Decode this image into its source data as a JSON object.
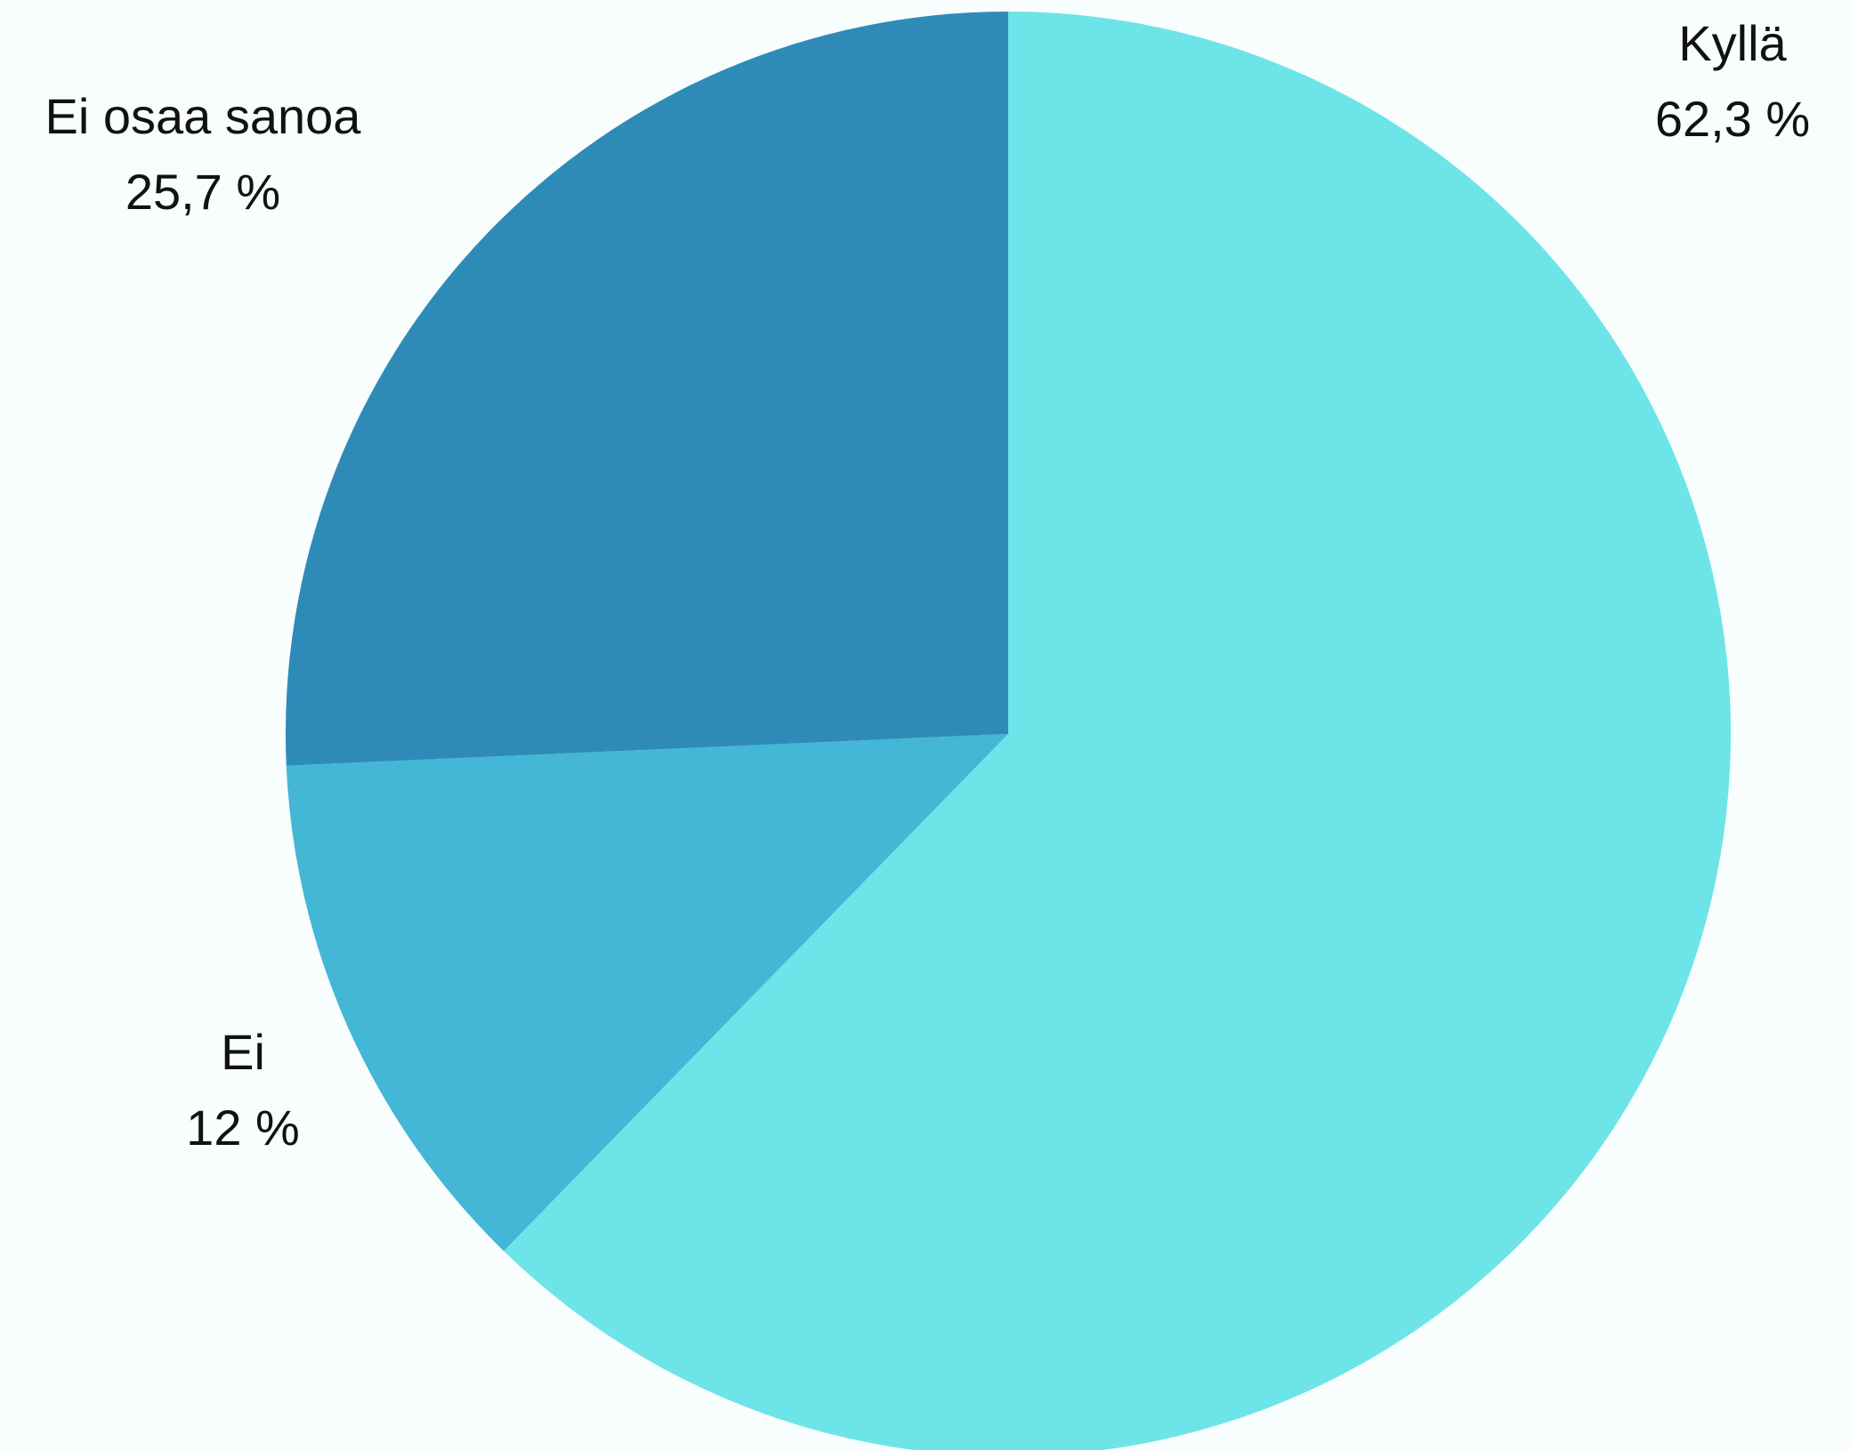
{
  "chart_data": {
    "type": "pie",
    "title": "",
    "slices": [
      {
        "label": "Kyllä",
        "value": 62.3,
        "value_text": "62,3 %",
        "color": "#6de4e8"
      },
      {
        "label": "Ei",
        "value": 12,
        "value_text": "12 %",
        "color": "#43b7d5"
      },
      {
        "label": "Ei osaa sanoa",
        "value": 25.7,
        "value_text": "25,7 %",
        "color": "#2e8bb8"
      }
    ],
    "start_angle": "12 o'clock",
    "direction": "clockwise",
    "label_placement": "outside",
    "legend": "none"
  }
}
